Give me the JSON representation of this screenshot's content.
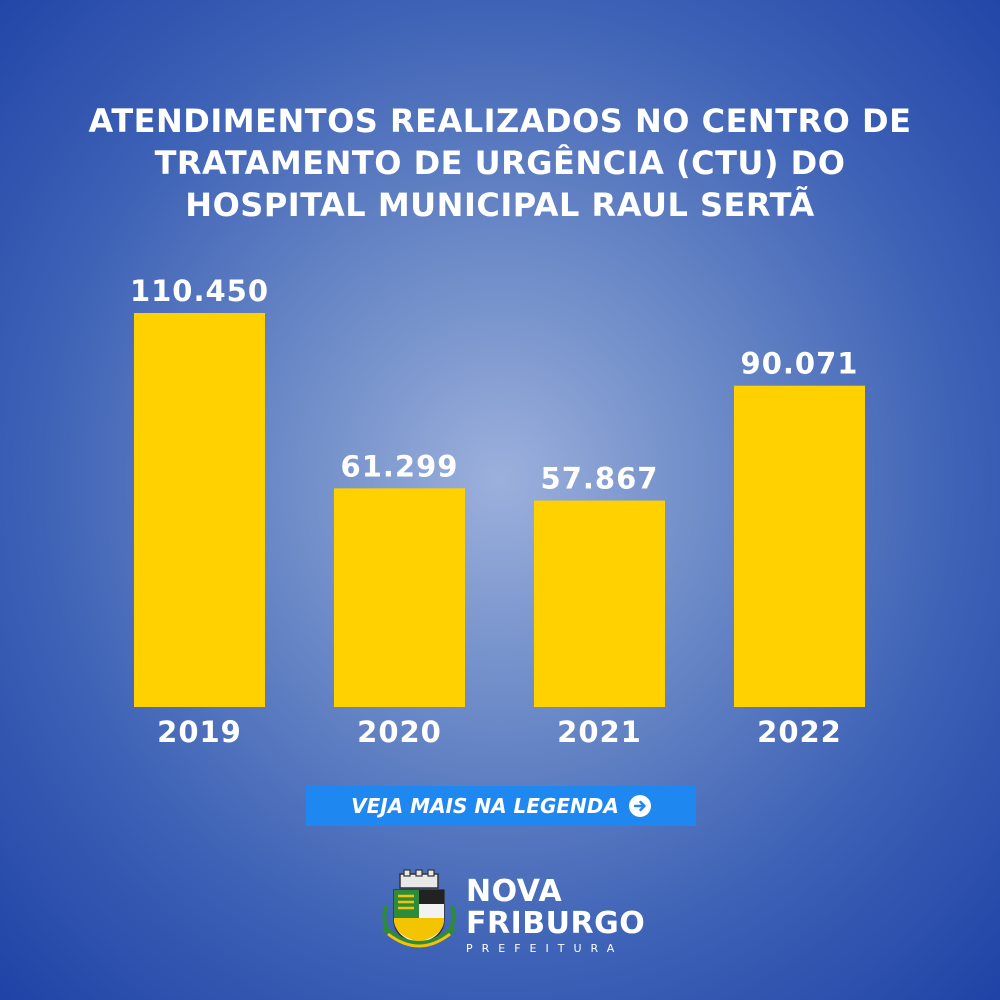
{
  "title": {
    "line1": "ATENDIMENTOS REALIZADOS NO CENTRO DE",
    "line2": "TRATAMENTO DE URGÊNCIA (CTU) DO",
    "line3": "HOSPITAL MUNICIPAL RAUL SERTÃ"
  },
  "chart_data": {
    "type": "bar",
    "title": "ATENDIMENTOS REALIZADOS NO CENTRO DE TRATAMENTO DE URGÊNCIA (CTU) DO HOSPITAL MUNICIPAL RAUL SERTÃ",
    "categories": [
      "2019",
      "2020",
      "2021",
      "2022"
    ],
    "values": [
      110450,
      61299,
      57867,
      90071
    ],
    "value_labels": [
      "110.450",
      "61.299",
      "57.867",
      "90.071"
    ],
    "xlabel": "",
    "ylabel": "",
    "ylim": [
      0,
      110450
    ],
    "grid": false,
    "bar_color": "#ffd100"
  },
  "cta": {
    "label": "VEJA MAIS NA LEGENDA",
    "icon": "arrow-right-circle-icon",
    "color": "#1e88f0"
  },
  "brand": {
    "line1": "NOVA",
    "line2": "FRIBURGO",
    "line3": "PREFEITURA",
    "icon": "coat-of-arms-icon"
  }
}
